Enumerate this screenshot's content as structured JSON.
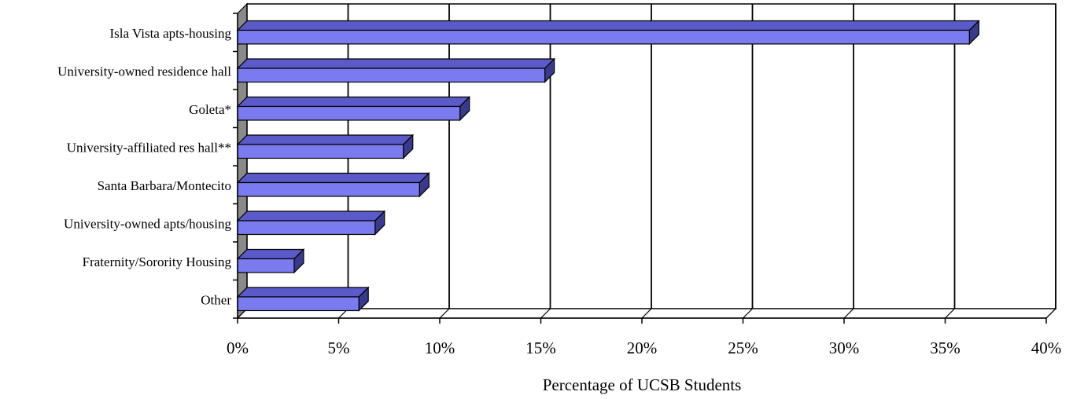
{
  "chart_data": {
    "type": "bar",
    "orientation": "horizontal",
    "three_d": true,
    "categories": [
      "Isla Vista apts-housing",
      "University-owned residence hall",
      "Goleta*",
      "University-affiliated res hall**",
      "Santa Barbara/Montecito",
      "University-owned apts/housing",
      "Fraternity/Sorority Housing",
      "Other"
    ],
    "values": [
      36.2,
      15.2,
      11.0,
      8.2,
      9.0,
      6.8,
      2.8,
      6.0
    ],
    "xlim": [
      0,
      40
    ],
    "xticks": [
      0,
      5,
      10,
      15,
      20,
      25,
      30,
      35,
      40
    ],
    "tick_labels": [
      "0%",
      "5%",
      "10%",
      "15%",
      "20%",
      "25%",
      "30%",
      "35%",
      "40%"
    ],
    "title": "",
    "xlabel": "Percentage of UCSB Students",
    "ylabel": "",
    "grid": "vertical",
    "colors": {
      "bar_front": "#7b7bf0",
      "bar_top": "#5a5ac8",
      "bar_side": "#3a3a8c",
      "wall": "#8a8a8a",
      "gridline": "#000000"
    }
  }
}
